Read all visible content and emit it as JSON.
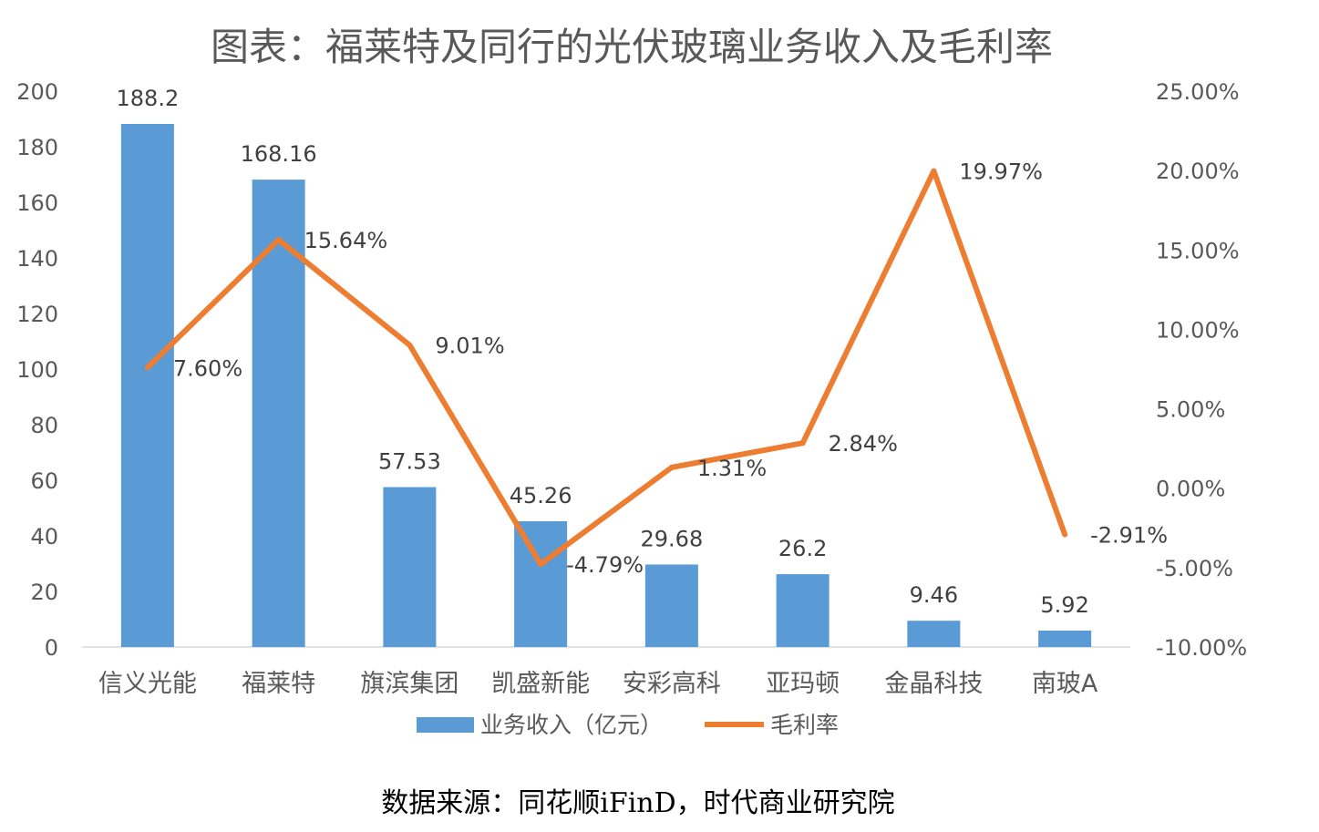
{
  "chart_data": {
    "type": "bar+line",
    "title": "图表：福莱特及同行的光伏玻璃业务收入及毛利率",
    "source": "数据来源：同花顺iFinD，时代商业研究院",
    "categories": [
      "信义光能",
      "福莱特",
      "旗滨集团",
      "凯盛新能",
      "安彩高科",
      "亚玛顿",
      "金晶科技",
      "南玻A"
    ],
    "series": [
      {
        "name": "业务收入（亿元）",
        "type": "bar",
        "axis": "left",
        "color": "#5b9bd5",
        "values": [
          188.2,
          168.16,
          57.53,
          45.26,
          29.68,
          26.2,
          9.46,
          5.92
        ],
        "labels": [
          "188.2",
          "168.16",
          "57.53",
          "45.26",
          "29.68",
          "26.2",
          "9.46",
          "5.92"
        ]
      },
      {
        "name": "毛利率",
        "type": "line",
        "axis": "right",
        "color": "#ed7d31",
        "values": [
          7.6,
          15.64,
          9.01,
          -4.79,
          1.31,
          2.84,
          19.97,
          -2.91
        ],
        "labels": [
          "7.60%",
          "15.64%",
          "9.01%",
          "-4.79%",
          "1.31%",
          "2.84%",
          "19.97%",
          "-2.91%"
        ]
      }
    ],
    "y_left": {
      "min": 0,
      "max": 200,
      "ticks": [
        "200",
        "180",
        "160",
        "140",
        "120",
        "100",
        "80",
        "60",
        "40",
        "20",
        "0"
      ],
      "tick_values": [
        200,
        180,
        160,
        140,
        120,
        100,
        80,
        60,
        40,
        20,
        0
      ]
    },
    "y_right": {
      "min": -10,
      "max": 25,
      "ticks": [
        "25.00%",
        "20.00%",
        "15.00%",
        "10.00%",
        "5.00%",
        "0.00%",
        "-5.00%",
        "-10.00%"
      ],
      "tick_values": [
        25,
        20,
        15,
        10,
        5,
        0,
        -5,
        -10
      ]
    },
    "grid": false,
    "legend_position": "bottom"
  }
}
